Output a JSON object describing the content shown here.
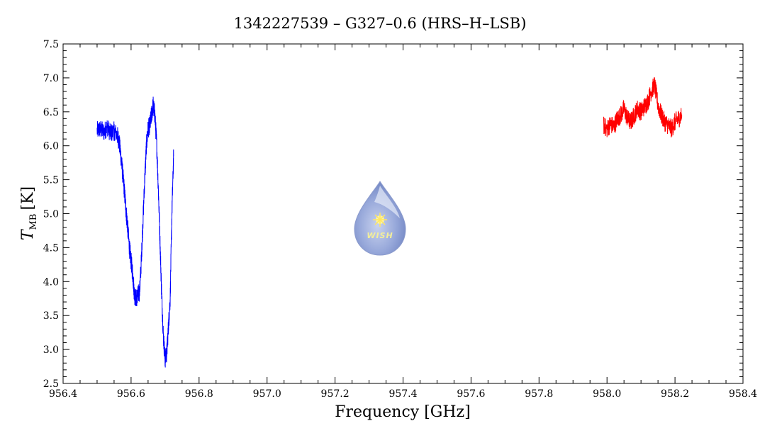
{
  "chart_data": {
    "type": "line",
    "title": "1342227539 – G327–0.6 (HRS–H–LSB)",
    "xlabel": "Frequency [GHz]",
    "ylabel_main": "T",
    "ylabel_sub": "MB",
    "ylabel_unit": "[K]",
    "xlim": [
      956.4,
      958.4
    ],
    "ylim": [
      2.5,
      7.5
    ],
    "xticks": [
      956.4,
      956.6,
      956.8,
      957.0,
      957.2,
      957.4,
      957.6,
      957.8,
      958.0,
      958.2,
      958.4
    ],
    "xtick_labels": [
      "956.4",
      "956.6",
      "956.8",
      "957.0",
      "957.2",
      "957.4",
      "957.6",
      "957.8",
      "958.0",
      "958.2",
      "958.4"
    ],
    "yticks": [
      2.5,
      3.0,
      3.5,
      4.0,
      4.5,
      5.0,
      5.5,
      6.0,
      6.5,
      7.0,
      7.5
    ],
    "ytick_labels": [
      "2.5",
      "3.0",
      "3.5",
      "4.0",
      "4.5",
      "5.0",
      "5.5",
      "6.0",
      "6.5",
      "7.0",
      "7.5"
    ],
    "grid": false,
    "series": [
      {
        "color": "#0000ff",
        "x": [
          956.5,
          956.51,
          956.52,
          956.53,
          956.54,
          956.55,
          956.56,
          956.565,
          956.57,
          956.575,
          956.58,
          956.585,
          956.59,
          956.595,
          956.6,
          956.605,
          956.61,
          956.615,
          956.62,
          956.625,
          956.63,
          956.635,
          956.64,
          956.645,
          956.65,
          956.655,
          956.66,
          956.665,
          956.67,
          956.675,
          956.68,
          956.685,
          956.69,
          956.695,
          956.7,
          956.705,
          956.71,
          956.715,
          956.72,
          956.725
        ],
        "y": [
          6.22,
          6.25,
          6.2,
          6.28,
          6.18,
          6.22,
          6.15,
          6.05,
          5.85,
          5.6,
          5.35,
          5.05,
          4.8,
          4.5,
          4.3,
          4.1,
          3.8,
          3.75,
          3.8,
          3.85,
          4.3,
          4.9,
          5.5,
          6.0,
          6.25,
          6.3,
          6.45,
          6.6,
          6.45,
          6.05,
          5.4,
          4.6,
          3.8,
          3.2,
          2.85,
          2.95,
          3.35,
          3.75,
          5.0,
          5.85
        ]
      },
      {
        "color": "#ff0000",
        "x": [
          957.99,
          958.0,
          958.01,
          958.02,
          958.03,
          958.04,
          958.05,
          958.06,
          958.07,
          958.08,
          958.09,
          958.1,
          958.11,
          958.12,
          958.13,
          958.14,
          958.15,
          958.16,
          958.17,
          958.18,
          958.19,
          958.2,
          958.21,
          958.22
        ],
        "y": [
          6.3,
          6.25,
          6.32,
          6.28,
          6.4,
          6.45,
          6.55,
          6.4,
          6.35,
          6.45,
          6.55,
          6.5,
          6.58,
          6.65,
          6.8,
          6.9,
          6.6,
          6.45,
          6.35,
          6.3,
          6.25,
          6.35,
          6.4,
          6.45
        ]
      }
    ]
  }
}
